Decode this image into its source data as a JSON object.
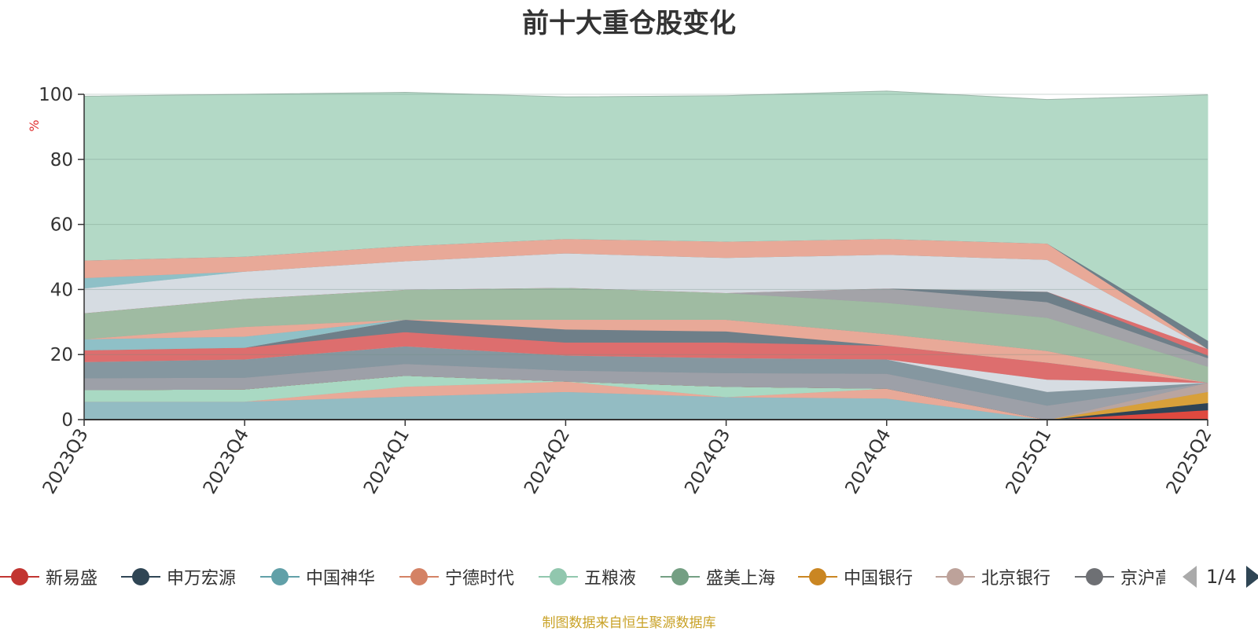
{
  "title": "前十大重仓股变化",
  "source_note": "制图数据来自恒生聚源数据库",
  "legend_page": "1/4",
  "chart_data": {
    "type": "area",
    "stacked": true,
    "title": "前十大重仓股变化",
    "ylabel": "%",
    "ylim": [
      0,
      100
    ],
    "yticks": [
      0,
      20,
      40,
      60,
      80,
      100
    ],
    "grid": true,
    "legend_position": "bottom",
    "categories": [
      "2023Q3",
      "2023Q4",
      "2024Q1",
      "2024Q2",
      "2024Q3",
      "2024Q4",
      "2025Q1",
      "2025Q2"
    ],
    "series": [
      {
        "color": "#93bcc3",
        "values": [
          5.6,
          5.6,
          7.2,
          8.6,
          7.0,
          6.6,
          0,
          0
        ]
      },
      {
        "color": "#e8a998",
        "values": [
          0,
          0,
          3.0,
          3.2,
          0,
          3.0,
          0,
          0
        ]
      },
      {
        "color": "#a9d9c3",
        "values": [
          3.6,
          3.8,
          3.4,
          0,
          3.2,
          0,
          0,
          0
        ]
      },
      {
        "color": "#e0493f",
        "values": [
          0,
          0,
          0,
          0,
          0,
          0,
          0,
          3.0
        ]
      },
      {
        "color": "#2e4356",
        "values": [
          0,
          0,
          0,
          0,
          0,
          0,
          0,
          2.2
        ]
      },
      {
        "color": "#d8a03a",
        "values": [
          0,
          0,
          0,
          0,
          0,
          0,
          0,
          3.4
        ]
      },
      {
        "color": "#b9a5a0",
        "values": [
          0,
          0,
          0,
          0,
          0,
          0,
          0,
          2.8
        ]
      },
      {
        "color": "#9da0a8",
        "values": [
          3.6,
          3.6,
          3.6,
          3.4,
          4.2,
          4.6,
          4.4,
          0
        ]
      },
      {
        "color": "#8597a0",
        "values": [
          5.0,
          5.6,
          5.4,
          4.6,
          4.6,
          4.4,
          4.2,
          0
        ]
      },
      {
        "color": "#d6dce2",
        "values": [
          0,
          0,
          0,
          0,
          0,
          0,
          3.8,
          0
        ]
      },
      {
        "color": "#dd6e6e",
        "values": [
          3.6,
          3.6,
          4.4,
          4.0,
          4.8,
          4.2,
          5.2,
          0
        ]
      },
      {
        "color": "#6e7f89",
        "values": [
          0,
          0,
          3.8,
          4.0,
          3.4,
          0,
          0,
          0
        ]
      },
      {
        "color": "#e8a998",
        "values": [
          0,
          0,
          0,
          3.0,
          3.6,
          3.6,
          3.6,
          0
        ]
      },
      {
        "color": "#8fc0c7",
        "values": [
          3.4,
          3.4,
          0,
          0,
          0,
          0,
          0,
          0
        ]
      },
      {
        "color": "#e8a998",
        "values": [
          0,
          3.0,
          0,
          0,
          0,
          0,
          0,
          0
        ]
      },
      {
        "color": "#9fbba2",
        "values": [
          8.0,
          8.6,
          9.2,
          9.8,
          8.2,
          9.6,
          10.2,
          5.0
        ]
      },
      {
        "color": "#a3a3a8",
        "values": [
          0,
          0,
          0,
          0,
          0,
          4.4,
          4.8,
          2.6
        ]
      },
      {
        "color": "#6e7f89",
        "values": [
          0,
          0,
          0,
          0,
          0,
          0,
          3.2,
          0.8
        ]
      },
      {
        "color": "#dd6e6e",
        "values": [
          0,
          0,
          0,
          0,
          0,
          0,
          0,
          2.0
        ]
      },
      {
        "color": "#d6dce2",
        "values": [
          7.6,
          8.4,
          8.8,
          10.6,
          10.8,
          10.4,
          9.8,
          0
        ]
      },
      {
        "color": "#8fc0c7",
        "values": [
          3.2,
          0,
          0,
          0,
          0,
          0,
          0,
          0
        ]
      },
      {
        "color": "#e8a998",
        "values": [
          5.4,
          4.6,
          4.6,
          4.4,
          5.0,
          4.8,
          5.0,
          0
        ]
      },
      {
        "color": "#6e7f89",
        "values": [
          0,
          0,
          0,
          0,
          0,
          0,
          0,
          2.6
        ]
      },
      {
        "color": "#b3d9c6",
        "values": [
          50.4,
          49.8,
          47.2,
          43.6,
          44.8,
          45.4,
          44.2,
          75.4
        ]
      }
    ]
  },
  "legend": [
    {
      "label": "新易盛",
      "color": "#c23531"
    },
    {
      "label": "申万宏源",
      "color": "#2f4554"
    },
    {
      "label": "中国神华",
      "color": "#61a0a8"
    },
    {
      "label": "宁德时代",
      "color": "#d48265"
    },
    {
      "label": "五粮液",
      "color": "#91c7ae"
    },
    {
      "label": "盛美上海",
      "color": "#749f83"
    },
    {
      "label": "中国银行",
      "color": "#ca8622"
    },
    {
      "label": "北京银行",
      "color": "#bda29a"
    },
    {
      "label": "京沪高铁",
      "color": "#6e7074"
    }
  ]
}
